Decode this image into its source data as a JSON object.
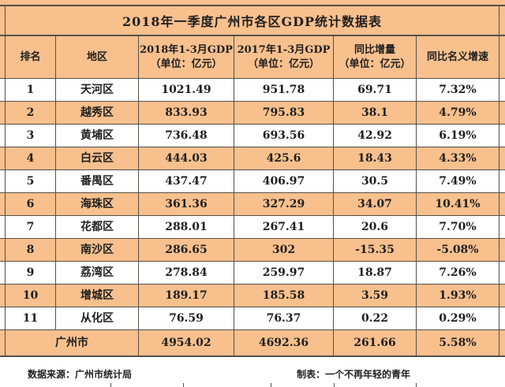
{
  "title": "2018年一季度广州市各区GDP统计数据表",
  "colors": {
    "stripe_peach": "#f8c08d",
    "stripe_white": "#ffffff",
    "border": "#55504a",
    "text": "#1f1f1f"
  },
  "header": {
    "rank": "排名",
    "district": "地区",
    "gdp2018_line1": "2018年1-3月GDP",
    "gdp2017_line1": "2017年1-3月GDP",
    "delta_line1": "同比增量",
    "unit_line": "（单位：亿元）",
    "growth": "同比名义增速"
  },
  "footer": {
    "source": "数据来源：广州市统计局",
    "credit": "制表：一个不再年轻的青年"
  },
  "chart_data": {
    "type": "table",
    "title": "2018年一季度广州市各区GDP统计数据表",
    "columns": [
      "排名",
      "地区",
      "2018年1-3月GDP（单位：亿元）",
      "2017年1-3月GDP（单位：亿元）",
      "同比增量（单位：亿元）",
      "同比名义增速"
    ],
    "rows": [
      [
        "1",
        "天河区",
        "1021.49",
        "951.78",
        "69.71",
        "7.32%"
      ],
      [
        "2",
        "越秀区",
        "833.93",
        "795.83",
        "38.1",
        "4.79%"
      ],
      [
        "3",
        "黄埔区",
        "736.48",
        "693.56",
        "42.92",
        "6.19%"
      ],
      [
        "4",
        "白云区",
        "444.03",
        "425.6",
        "18.43",
        "4.33%"
      ],
      [
        "5",
        "番禺区",
        "437.47",
        "406.97",
        "30.5",
        "7.49%"
      ],
      [
        "6",
        "海珠区",
        "361.36",
        "327.29",
        "34.07",
        "10.41%"
      ],
      [
        "7",
        "花都区",
        "288.01",
        "267.41",
        "20.6",
        "7.70%"
      ],
      [
        "8",
        "南沙区",
        "286.65",
        "302",
        "-15.35",
        "-5.08%"
      ],
      [
        "9",
        "荔湾区",
        "278.84",
        "259.97",
        "18.87",
        "7.26%"
      ],
      [
        "10",
        "增城区",
        "189.17",
        "185.58",
        "3.59",
        "1.93%"
      ],
      [
        "11",
        "从化区",
        "76.59",
        "76.37",
        "0.22",
        "0.29%"
      ]
    ],
    "total": [
      "广州市",
      "4954.02",
      "4692.36",
      "261.66",
      "5.58%"
    ],
    "source_note": "数据来源：广州市统计局",
    "credit_note": "制表：一个不再年轻的青年"
  }
}
